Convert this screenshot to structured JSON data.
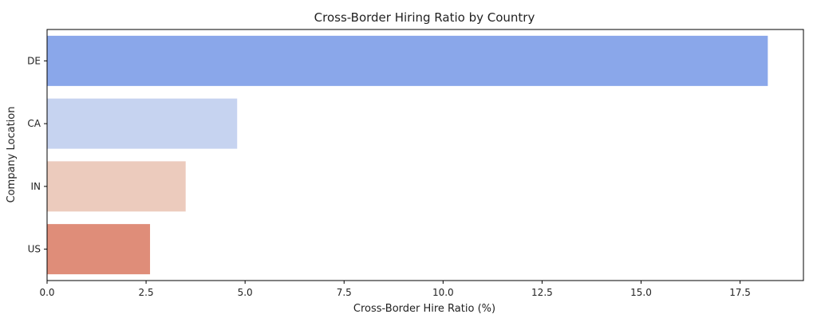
{
  "chart_data": {
    "type": "bar",
    "orientation": "horizontal",
    "title": "Cross-Border Hiring Ratio by Country",
    "xlabel": "Cross-Border Hire Ratio (%)",
    "ylabel": "Company Location",
    "categories": [
      "DE",
      "CA",
      "IN",
      "US"
    ],
    "values": [
      18.2,
      4.8,
      3.5,
      2.6
    ],
    "colors": [
      "#8aa7ea",
      "#c6d3f0",
      "#eccbbd",
      "#df8d79"
    ],
    "xlim": [
      0,
      19.1
    ],
    "xticks": [
      0.0,
      2.5,
      5.0,
      7.5,
      10.0,
      12.5,
      15.0,
      17.5
    ],
    "xtick_labels": [
      "0.0",
      "2.5",
      "5.0",
      "7.5",
      "10.0",
      "12.5",
      "15.0",
      "17.5"
    ],
    "grid": false,
    "legend": "none"
  }
}
